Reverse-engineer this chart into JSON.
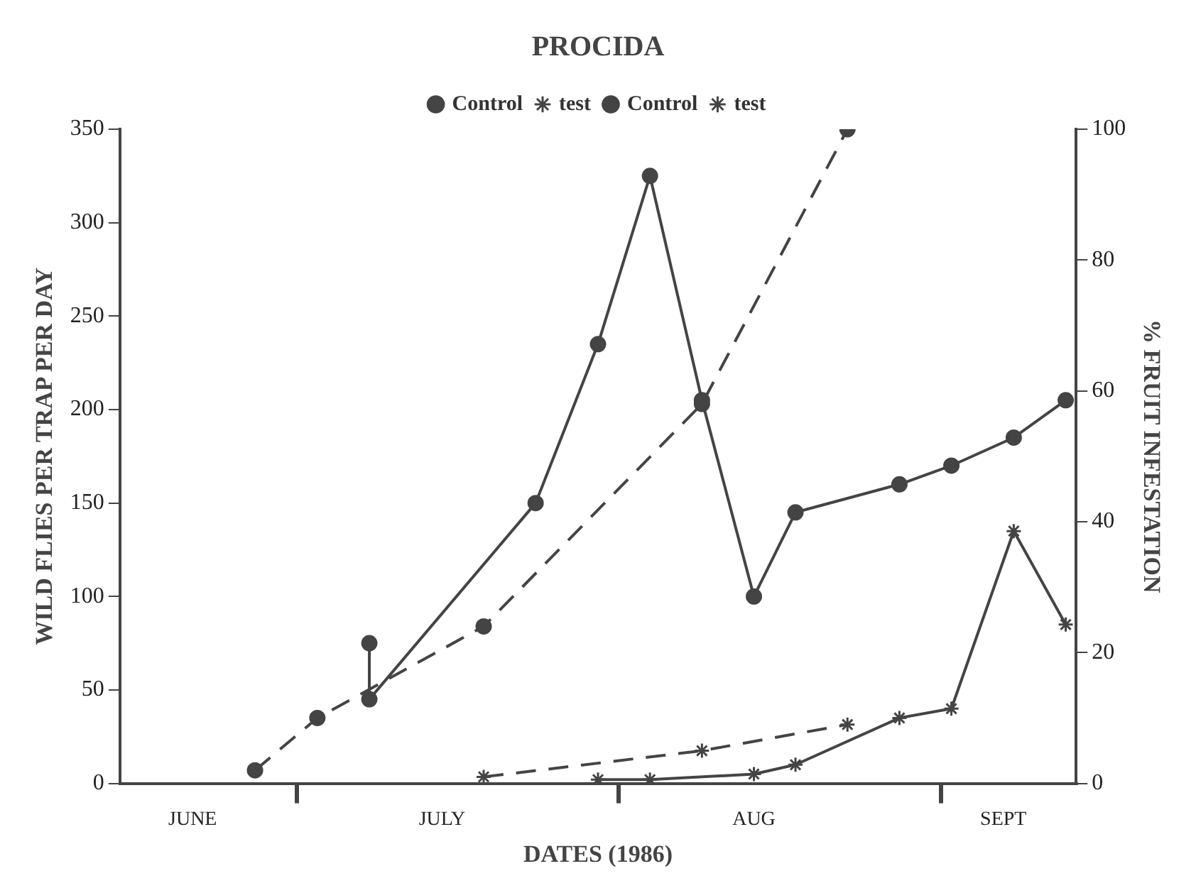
{
  "chart_data": {
    "type": "line",
    "title": "PROCIDA",
    "xlabel": "DATES (1986)",
    "ylabel": "WILD FLIES PER TRAP PER DAY",
    "y2label": "% FRUIT INFESTATION",
    "xlim": [
      "--06-14",
      "--09-14"
    ],
    "xticks": [
      {
        "value": "--06-21",
        "label": "JUNE"
      },
      {
        "value": "--07-01",
        "label": null
      },
      {
        "value": "--07-15",
        "label": "JULY"
      },
      {
        "value": "--08-01",
        "label": null
      },
      {
        "value": "--08-14",
        "label": "AUG"
      },
      {
        "value": "--09-01",
        "label": null
      },
      {
        "value": "--09-07",
        "label": "SEPT"
      }
    ],
    "ylim": [
      0,
      350
    ],
    "yticks": [
      0,
      50,
      100,
      150,
      200,
      250,
      300,
      350
    ],
    "y2lim": [
      0,
      100
    ],
    "y2ticks": [
      0,
      20,
      40,
      60,
      80,
      100
    ],
    "grid": false,
    "legend": "top",
    "series": [
      {
        "name": "Control",
        "color": "#444444",
        "marker": "circle",
        "line_style": "solid",
        "x": [
          "--07-08",
          "--07-08",
          "--07-24",
          "--07-30",
          "--08-04",
          "--08-09",
          "--08-14",
          "--08-18",
          "--08-28",
          "--09-02",
          "--09-08",
          "--09-13"
        ],
        "values": [
          75,
          45,
          150,
          235,
          325,
          205,
          100,
          145,
          160,
          170,
          185,
          205
        ]
      },
      {
        "name": "test",
        "color": "#444444",
        "marker": "cross",
        "line_style": "solid",
        "x": [
          "--07-30",
          "--08-04",
          "--08-14",
          "--08-18",
          "--08-28",
          "--09-02",
          "--09-08",
          "--09-13"
        ],
        "values": [
          2,
          2,
          5,
          10,
          35,
          40,
          135,
          85
        ]
      },
      {
        "name": "Control",
        "color": "#444444",
        "marker": "circle",
        "line_style": "dashed",
        "axis": "y2",
        "x": [
          "--06-27",
          "--07-03",
          "--07-19",
          "--08-09",
          "--08-23"
        ],
        "values": [
          2,
          10,
          24,
          58,
          100
        ]
      },
      {
        "name": "test",
        "color": "#444444",
        "marker": "cross",
        "line_style": "dashed",
        "axis": "y2",
        "x": [
          "--07-19",
          "--08-09",
          "--08-23"
        ],
        "values": [
          1,
          5,
          9
        ]
      }
    ]
  }
}
